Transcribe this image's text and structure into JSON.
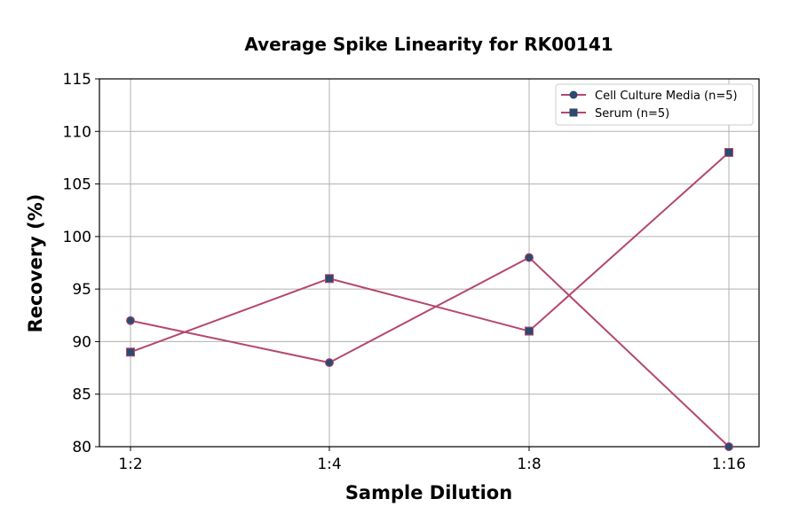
{
  "chart_data": {
    "type": "line",
    "title": "Average Spike Linearity for RK00141",
    "xlabel": "Sample Dilution",
    "ylabel": "Recovery (%)",
    "categories": [
      "1:2",
      "1:4",
      "1:8",
      "1:16"
    ],
    "ylim": [
      80,
      115
    ],
    "yticks": [
      80,
      85,
      90,
      95,
      100,
      105,
      110,
      115
    ],
    "grid": true,
    "legend_position": "top-right",
    "line_color": "#b5476f",
    "marker_color": "#2c4a6e",
    "series": [
      {
        "name": "Cell Culture Media (n=5)",
        "marker": "circle",
        "values": [
          92,
          88,
          98,
          80
        ]
      },
      {
        "name": "Serum (n=5)",
        "marker": "square",
        "values": [
          89,
          96,
          91,
          108
        ]
      }
    ]
  }
}
